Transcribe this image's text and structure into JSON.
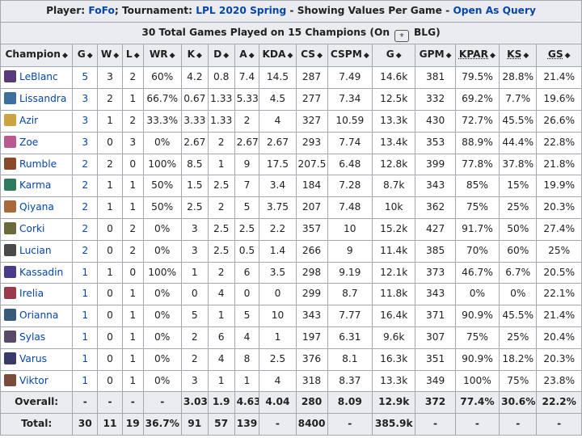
{
  "banner": {
    "player_label": "Player:",
    "player_name": "FoFo",
    "sep1": ";",
    "tournament_label": "Tournament:",
    "tournament_name": "LPL 2020 Spring",
    "mode_text": "- Showing Values Per Game -",
    "query_link": "Open As Query"
  },
  "subtitle": {
    "before": "30 Total Games Played on 15 Champions (On",
    "team": "BLG)"
  },
  "columns": [
    "Champion",
    "G",
    "W",
    "L",
    "WR",
    "K",
    "D",
    "A",
    "KDA",
    "CS",
    "CSPM",
    "G",
    "GPM",
    "KPAR",
    "KS",
    "GS"
  ],
  "rows": [
    {
      "champion": "LeBlanc",
      "icon": "#5a3a7a",
      "cells": [
        "5",
        "3",
        "2",
        "60%",
        "4.2",
        "0.8",
        "7.4",
        "14.5",
        "287",
        "7.49",
        "14.6k",
        "381",
        "79.5%",
        "28.8%",
        "21.4%"
      ]
    },
    {
      "champion": "Lissandra",
      "icon": "#3a6f9e",
      "cells": [
        "3",
        "2",
        "1",
        "66.7%",
        "0.67",
        "1.33",
        "5.33",
        "4.5",
        "277",
        "7.34",
        "12.5k",
        "332",
        "69.2%",
        "7.7%",
        "19.6%"
      ]
    },
    {
      "champion": "Azir",
      "icon": "#c9a441",
      "cells": [
        "3",
        "1",
        "2",
        "33.3%",
        "3.33",
        "1.33",
        "2",
        "4",
        "327",
        "10.59",
        "13.3k",
        "430",
        "72.7%",
        "45.5%",
        "26.6%"
      ]
    },
    {
      "champion": "Zoe",
      "icon": "#b85a8f",
      "cells": [
        "3",
        "0",
        "3",
        "0%",
        "2.67",
        "2",
        "2.67",
        "2.67",
        "293",
        "7.74",
        "13.4k",
        "353",
        "88.9%",
        "44.4%",
        "22.8%"
      ]
    },
    {
      "champion": "Rumble",
      "icon": "#8a4a2a",
      "cells": [
        "2",
        "2",
        "0",
        "100%",
        "8.5",
        "1",
        "9",
        "17.5",
        "207.5",
        "6.48",
        "12.8k",
        "399",
        "77.8%",
        "37.8%",
        "21.8%"
      ]
    },
    {
      "champion": "Karma",
      "icon": "#2f7a5a",
      "cells": [
        "2",
        "1",
        "1",
        "50%",
        "1.5",
        "2.5",
        "7",
        "3.4",
        "184",
        "7.28",
        "8.7k",
        "343",
        "85%",
        "15%",
        "19.9%"
      ]
    },
    {
      "champion": "Qiyana",
      "icon": "#a86a3a",
      "cells": [
        "2",
        "1",
        "1",
        "50%",
        "2.5",
        "2",
        "5",
        "3.75",
        "207",
        "7.48",
        "10k",
        "362",
        "75%",
        "25%",
        "20.3%"
      ]
    },
    {
      "champion": "Corki",
      "icon": "#6a6a3a",
      "cells": [
        "2",
        "0",
        "2",
        "0%",
        "3",
        "2.5",
        "2.5",
        "2.2",
        "357",
        "10",
        "15.2k",
        "427",
        "91.7%",
        "50%",
        "27.4%"
      ]
    },
    {
      "champion": "Lucian",
      "icon": "#4a4a4a",
      "cells": [
        "2",
        "0",
        "2",
        "0%",
        "3",
        "2.5",
        "0.5",
        "1.4",
        "266",
        "9",
        "11.4k",
        "385",
        "70%",
        "60%",
        "25%"
      ]
    },
    {
      "champion": "Kassadin",
      "icon": "#4a3a8a",
      "cells": [
        "1",
        "1",
        "0",
        "100%",
        "1",
        "2",
        "6",
        "3.5",
        "298",
        "9.19",
        "12.1k",
        "373",
        "46.7%",
        "6.7%",
        "20.5%"
      ]
    },
    {
      "champion": "Irelia",
      "icon": "#9a3a4a",
      "cells": [
        "1",
        "0",
        "1",
        "0%",
        "0",
        "4",
        "0",
        "0",
        "299",
        "8.7",
        "11.8k",
        "343",
        "0%",
        "0%",
        "22.1%"
      ]
    },
    {
      "champion": "Orianna",
      "icon": "#3a5a7a",
      "cells": [
        "1",
        "0",
        "1",
        "0%",
        "5",
        "1",
        "5",
        "10",
        "343",
        "7.77",
        "16.4k",
        "371",
        "90.9%",
        "45.5%",
        "21.4%"
      ]
    },
    {
      "champion": "Sylas",
      "icon": "#5a4a6a",
      "cells": [
        "1",
        "0",
        "1",
        "0%",
        "2",
        "6",
        "4",
        "1",
        "197",
        "6.31",
        "9.6k",
        "307",
        "75%",
        "25%",
        "20.4%"
      ]
    },
    {
      "champion": "Varus",
      "icon": "#3a3a6a",
      "cells": [
        "1",
        "0",
        "1",
        "0%",
        "2",
        "4",
        "8",
        "2.5",
        "376",
        "8.1",
        "16.3k",
        "351",
        "90.9%",
        "18.2%",
        "20.3%"
      ]
    },
    {
      "champion": "Viktor",
      "icon": "#7a4a3a",
      "cells": [
        "1",
        "0",
        "1",
        "0%",
        "3",
        "1",
        "1",
        "4",
        "318",
        "8.37",
        "13.3k",
        "349",
        "100%",
        "75%",
        "23.8%"
      ]
    }
  ],
  "overall": {
    "label": "Overall:",
    "cells": [
      "-",
      "-",
      "-",
      "-",
      "3.03",
      "1.9",
      "4.63",
      "4.04",
      "280",
      "8.09",
      "12.9k",
      "372",
      "77.4%",
      "30.6%",
      "22.2%"
    ]
  },
  "total": {
    "label": "Total:",
    "cells": [
      "30",
      "11",
      "19",
      "36.7%",
      "91",
      "57",
      "139",
      "-",
      "8400",
      "-",
      "385.9k",
      "-",
      "-",
      "-",
      "-"
    ]
  }
}
